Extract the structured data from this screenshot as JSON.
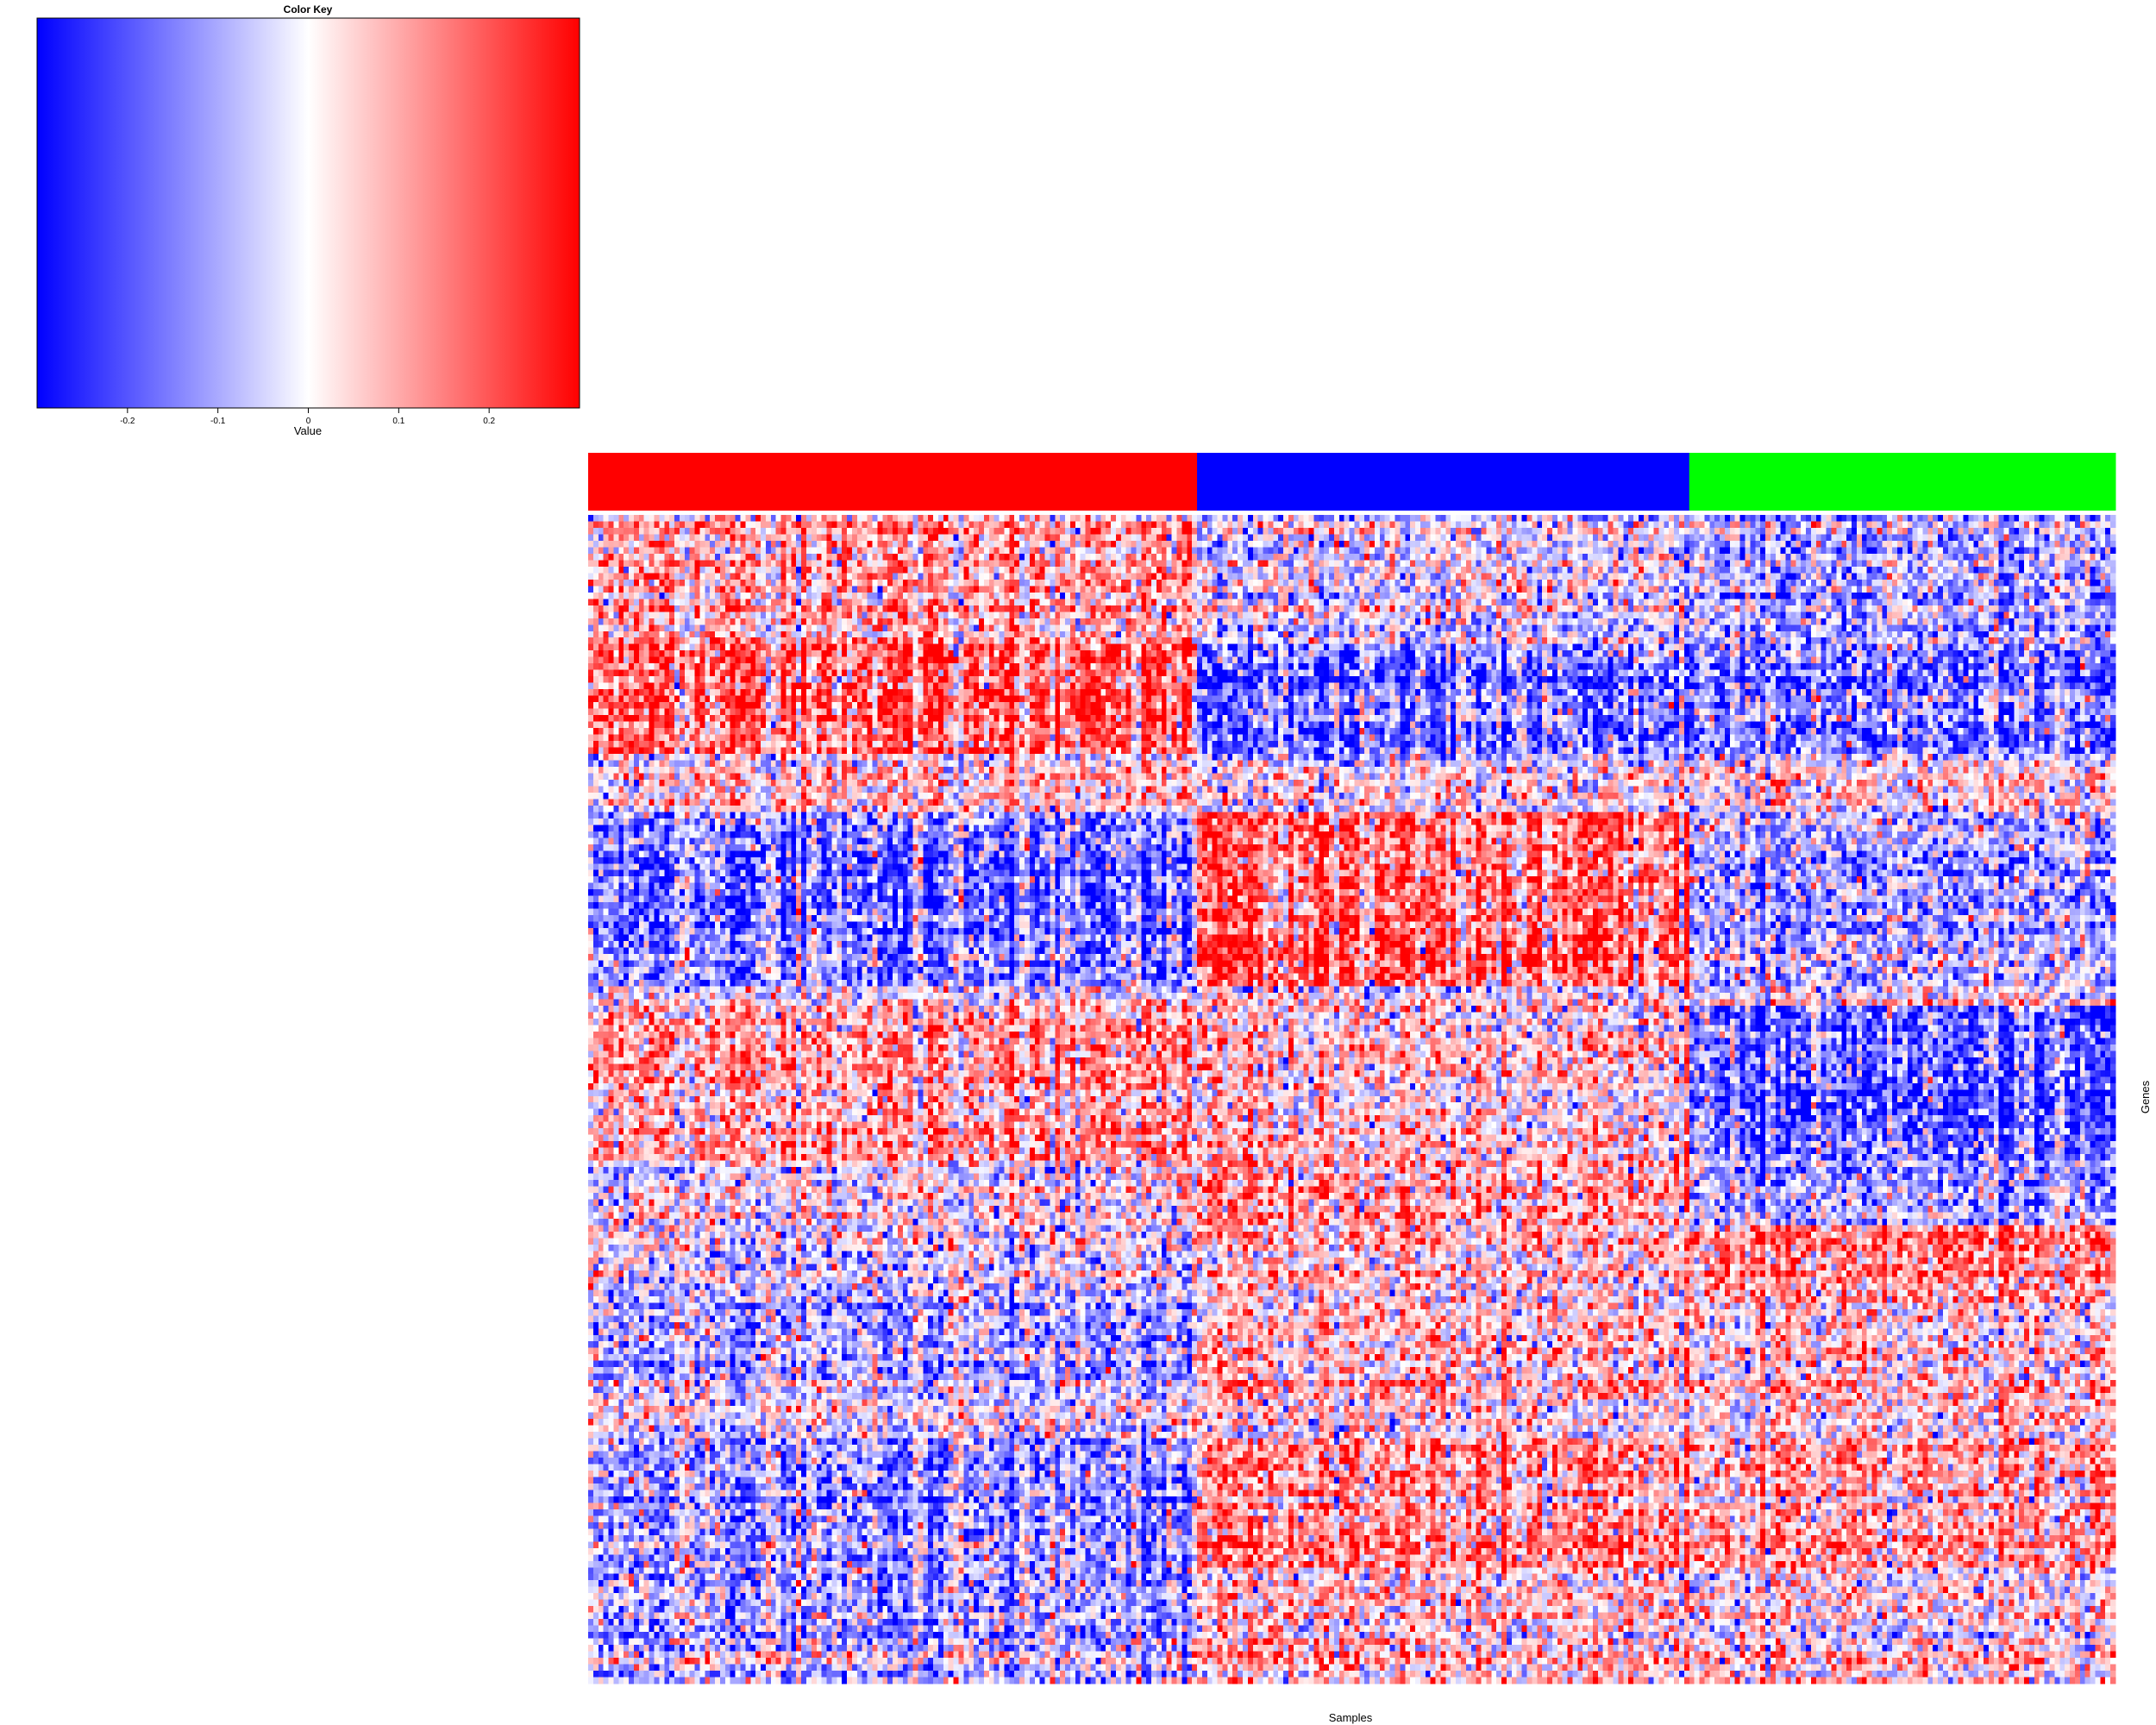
{
  "chart_data": {
    "type": "heatmap",
    "title": "",
    "xlabel": "Samples",
    "ylabel": "Genes",
    "color_key": {
      "title": "Color Key",
      "xlabel": "Value",
      "range": [
        -0.3,
        0.3
      ],
      "ticks": [
        -0.2,
        -0.1,
        0,
        0.1,
        0.2
      ],
      "tick_labels": [
        "-0.2",
        "-0.1",
        "0",
        "0.1",
        "0.2"
      ],
      "colors": {
        "low": "#0000ff",
        "mid": "#ffffff",
        "high": "#ff0000"
      }
    },
    "column_groups": [
      {
        "color": "#ff0000",
        "n_samples": 120
      },
      {
        "color": "#0000ff",
        "n_samples": 97
      },
      {
        "color": "#00ff00",
        "n_samples": 84
      }
    ],
    "gene_blocks": [
      {
        "n_genes": 20,
        "pattern": [
          0.1,
          -0.05,
          -0.12
        ]
      },
      {
        "n_genes": 17,
        "pattern": [
          0.22,
          -0.2,
          -0.18
        ]
      },
      {
        "n_genes": 9,
        "pattern": [
          0.03,
          -0.03,
          0.0
        ]
      },
      {
        "n_genes": 27,
        "pattern": [
          -0.18,
          0.22,
          -0.1
        ]
      },
      {
        "n_genes": 3,
        "pattern": [
          0.0,
          0.0,
          0.0
        ]
      },
      {
        "n_genes": 24,
        "pattern": [
          0.12,
          0.05,
          -0.22
        ]
      },
      {
        "n_genes": 10,
        "pattern": [
          0.0,
          0.12,
          -0.12
        ]
      },
      {
        "n_genes": 12,
        "pattern": [
          -0.05,
          0.05,
          0.15
        ]
      },
      {
        "n_genes": 15,
        "pattern": [
          -0.1,
          0.08,
          0.06
        ]
      },
      {
        "n_genes": 6,
        "pattern": [
          -0.02,
          0.0,
          0.03
        ]
      },
      {
        "n_genes": 20,
        "pattern": [
          -0.15,
          0.15,
          0.1
        ]
      },
      {
        "n_genes": 18,
        "pattern": [
          -0.12,
          0.05,
          0.02
        ]
      }
    ]
  }
}
